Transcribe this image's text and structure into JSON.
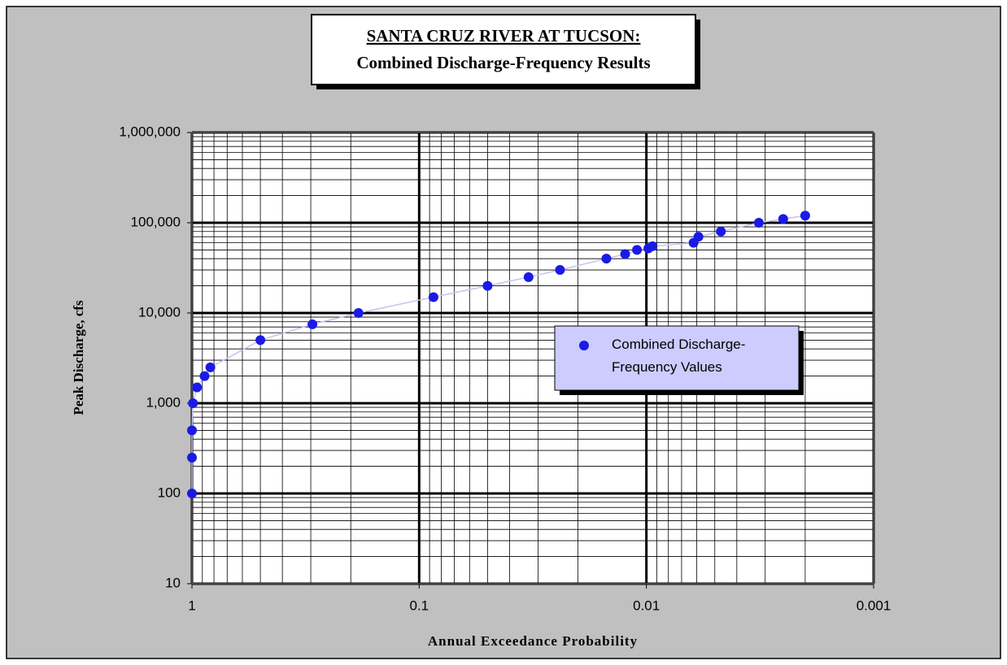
{
  "chart_data": {
    "type": "scatter",
    "title": "SANTA CRUZ RIVER AT TUCSON:",
    "subtitle": "Combined Discharge-Frequency Results",
    "x_label": "Annual Exceedance Probability",
    "y_label": "Peak Discharge, cfs",
    "x_log": true,
    "y_log": true,
    "grid": true,
    "legend": "right",
    "xlim": [
      1,
      0.001
    ],
    "xticks": [
      1,
      0.1,
      0.01,
      0.001
    ],
    "ylim": [
      10,
      1000000
    ],
    "yticks": [
      {
        "value": 10,
        "label": "10"
      },
      {
        "value": 100,
        "label": "100"
      },
      {
        "value": 1000,
        "label": "1,000"
      },
      {
        "value": 10000,
        "label": "10,000"
      },
      {
        "value": 100000,
        "label": "100,000"
      },
      {
        "value": 1000000,
        "label": "1,000,000"
      }
    ],
    "line_color": "#c4c4ee",
    "series": [
      {
        "name": "Combined Discharge-Frequency Values",
        "color": "#1a1ae6",
        "x": [
          1,
          1,
          1,
          0.99,
          0.95,
          0.88,
          0.83,
          0.5,
          0.295,
          0.185,
          0.0865,
          0.05,
          0.033,
          0.024,
          0.015,
          0.0124,
          0.011,
          0.0098,
          0.0094,
          0.0062,
          0.0059,
          0.0047,
          0.0032,
          0.0025,
          0.002
        ],
        "values": [
          100,
          250,
          500,
          1000,
          1500,
          2000,
          2500,
          5000,
          7500,
          10000,
          15000,
          20000,
          25000,
          30000,
          40000,
          45000,
          50000,
          52000,
          55000,
          60000,
          70000,
          80000,
          100000,
          110000,
          120000
        ]
      }
    ]
  }
}
